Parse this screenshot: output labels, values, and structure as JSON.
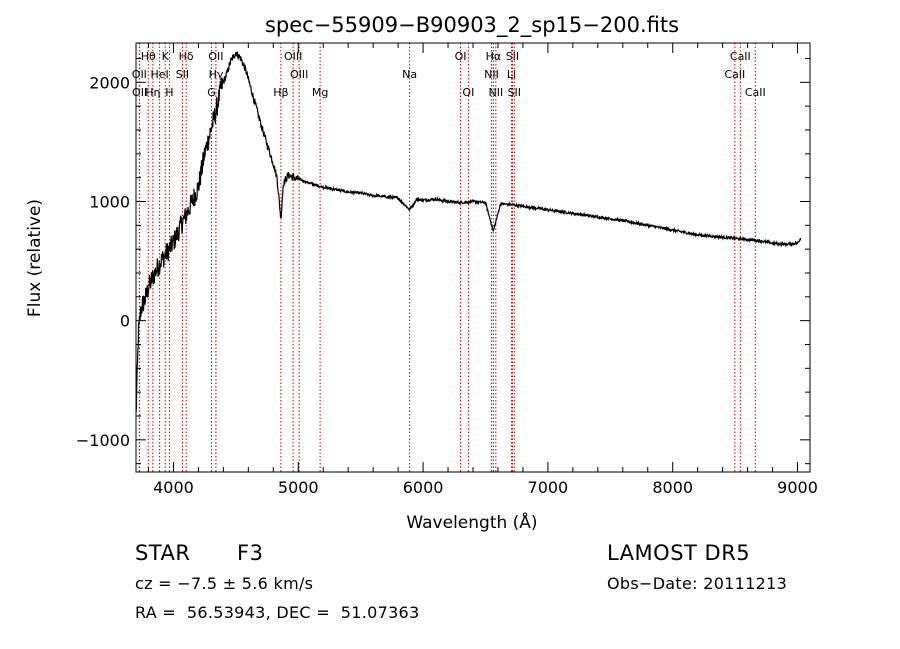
{
  "chart_data": {
    "type": "line",
    "title": "spec−55909−B90903_2_sp15−200.fits",
    "xlabel": "Wavelength (Å)",
    "ylabel": "Flux (relative)",
    "xlim": [
      3700,
      9100
    ],
    "ylim": [
      -1270,
      2330
    ],
    "x_ticks": [
      4000,
      5000,
      6000,
      7000,
      8000,
      9000
    ],
    "y_ticks": [
      -1000,
      0,
      1000,
      2000
    ],
    "grid": false,
    "line_color": "#000000",
    "marker_color": "#cc0000",
    "series": [
      {
        "x": [
          3700,
          3720,
          3740,
          3760,
          3780,
          3800,
          3830,
          3860,
          3900,
          3940,
          3980,
          4020,
          4060,
          4100,
          4150,
          4200,
          4250,
          4300,
          4340,
          4380,
          4420,
          4460,
          4500,
          4540,
          4580,
          4620,
          4660,
          4700,
          4750,
          4800,
          4830,
          4861,
          4880,
          4920,
          4960,
          5000,
          5100,
          5200,
          5300,
          5400,
          5500,
          5600,
          5700,
          5800,
          5892,
          5950,
          6000,
          6100,
          6200,
          6300,
          6400,
          6500,
          6563,
          6620,
          6700,
          6800,
          6900,
          7000,
          7200,
          7400,
          7600,
          7800,
          8000,
          8200,
          8400,
          8500,
          8600,
          8700,
          8800,
          8900,
          9000,
          9030
        ],
        "y": [
          -800,
          -100,
          100,
          150,
          200,
          280,
          350,
          420,
          500,
          560,
          620,
          700,
          800,
          880,
          1000,
          1120,
          1400,
          1600,
          1750,
          1950,
          2050,
          2180,
          2250,
          2200,
          2100,
          1950,
          1800,
          1650,
          1480,
          1320,
          1200,
          850,
          1150,
          1220,
          1200,
          1190,
          1150,
          1120,
          1100,
          1080,
          1070,
          1050,
          1040,
          1030,
          930,
          1020,
          1010,
          1020,
          1000,
          990,
          1000,
          990,
          750,
          980,
          975,
          960,
          945,
          930,
          900,
          870,
          840,
          800,
          760,
          720,
          700,
          690,
          680,
          670,
          650,
          640,
          650,
          700
        ]
      }
    ],
    "line_markers": [
      {
        "label": "Hθ",
        "x": 3798,
        "row": 1
      },
      {
        "label": "K",
        "x": 3934,
        "row": 1
      },
      {
        "label": "Hδ",
        "x": 4102,
        "row": 1
      },
      {
        "label": "OII",
        "x": 4340,
        "row": 1
      },
      {
        "label": "OIII",
        "x": 4959,
        "row": 1
      },
      {
        "label": "OI",
        "x": 6300,
        "row": 1
      },
      {
        "label": "Hα",
        "x": 6563,
        "row": 1
      },
      {
        "label": "SII",
        "x": 6716,
        "row": 1
      },
      {
        "label": "CaII",
        "x": 8542,
        "row": 1
      },
      {
        "label": "OII",
        "x": 3727,
        "row": 2
      },
      {
        "label": "HeI",
        "x": 3889,
        "row": 2
      },
      {
        "label": "SII",
        "x": 4072,
        "row": 2
      },
      {
        "label": "Hγ",
        "x": 4341,
        "row": 2
      },
      {
        "label": "OIII",
        "x": 5007,
        "row": 2
      },
      {
        "label": "Na",
        "x": 5892,
        "row": 2
      },
      {
        "label": "NII",
        "x": 6548,
        "row": 2
      },
      {
        "label": "Li",
        "x": 6708,
        "row": 2
      },
      {
        "label": "CaII",
        "x": 8498,
        "row": 2
      },
      {
        "label": "OII",
        "x": 3729,
        "row": 3
      },
      {
        "label": "Hη",
        "x": 3835,
        "row": 3
      },
      {
        "label": "H",
        "x": 3968,
        "row": 3
      },
      {
        "label": "G",
        "x": 4305,
        "row": 3
      },
      {
        "label": "Hβ",
        "x": 4861,
        "row": 3
      },
      {
        "label": "Mg",
        "x": 5175,
        "row": 3
      },
      {
        "label": "OI",
        "x": 6363,
        "row": 3
      },
      {
        "label": "NII",
        "x": 6583,
        "row": 3
      },
      {
        "label": "SII",
        "x": 6731,
        "row": 3
      },
      {
        "label": "CaII",
        "x": 8662,
        "row": 3
      }
    ]
  },
  "info": {
    "object_type": "STAR",
    "subclass": "F3",
    "survey": "LAMOST DR5",
    "redshift_line": "cz = −7.5 ± 5.6 km/s",
    "obs_date": "Obs−Date: 20111213",
    "coords": "RA =  56.53943, DEC =  51.07363"
  }
}
